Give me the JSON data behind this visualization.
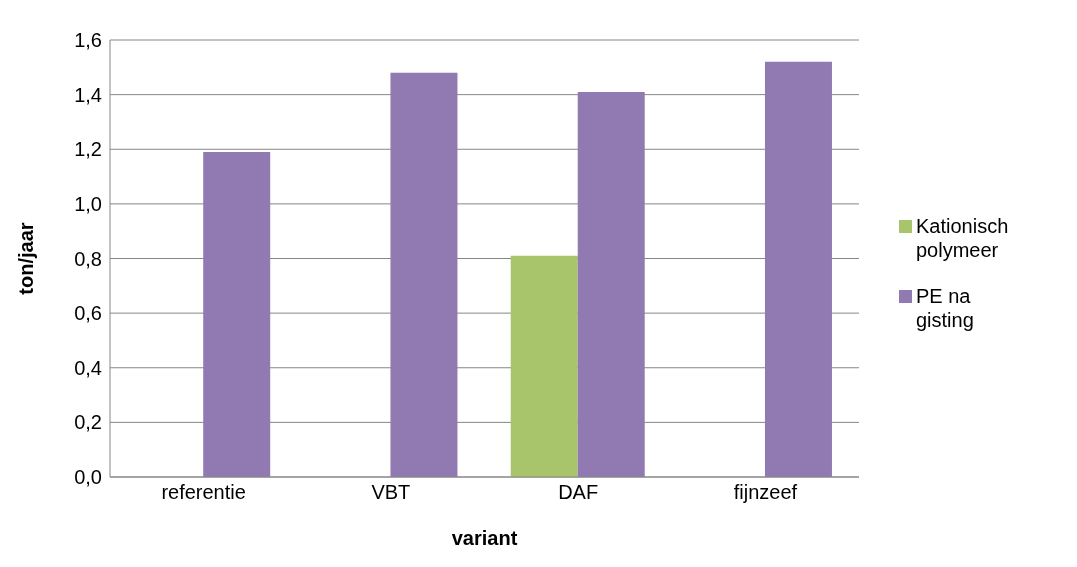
{
  "chart_data": {
    "type": "bar",
    "xlabel": "variant",
    "ylabel": "ton/jaar",
    "categories": [
      "referentie",
      "VBT",
      "DAF",
      "fijnzeef"
    ],
    "series": [
      {
        "name": "Kationisch polymeer",
        "color": "#a8c56c",
        "values": [
          null,
          null,
          0.81,
          null
        ]
      },
      {
        "name": "PE na gisting",
        "color": "#917ab1",
        "values": [
          1.19,
          1.48,
          1.41,
          1.52
        ]
      }
    ],
    "ylim": [
      0,
      1.6
    ],
    "yticks": [
      {
        "value": 0,
        "label": "0,0"
      },
      {
        "value": 0.2,
        "label": "0,2"
      },
      {
        "value": 0.4,
        "label": "0,4"
      },
      {
        "value": 0.6,
        "label": "0,6"
      },
      {
        "value": 0.8,
        "label": "0,8"
      },
      {
        "value": 1,
        "label": "1,0"
      },
      {
        "value": 1.2,
        "label": "1,2"
      },
      {
        "value": 1.4,
        "label": "1,4"
      },
      {
        "value": 1.6,
        "label": "1,6"
      }
    ],
    "grid": "y",
    "legend": "right"
  }
}
